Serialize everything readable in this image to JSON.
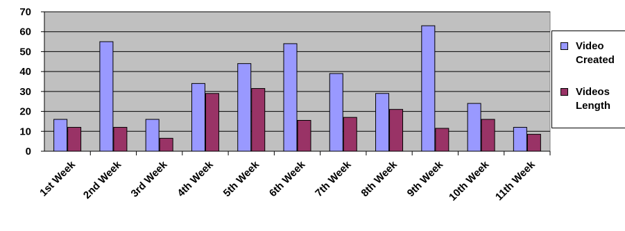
{
  "chart_data": {
    "type": "bar",
    "title": "",
    "xlabel": "",
    "ylabel": "",
    "ylim": [
      0,
      70
    ],
    "yticks": [
      0,
      10,
      20,
      30,
      40,
      50,
      60,
      70
    ],
    "grid": true,
    "legend_position": "right",
    "categories": [
      "1st Week",
      "2nd Week",
      "3rd Week",
      "4th Week",
      "5th Week",
      "6th Week",
      "7th Week",
      "8th Week",
      "9th Week",
      "10th Week",
      "11th Week"
    ],
    "series": [
      {
        "name": "Video Created",
        "color": "#9999ff",
        "values": [
          16,
          55,
          16,
          34,
          44,
          54,
          39,
          29,
          63,
          24,
          12
        ]
      },
      {
        "name": "Videos Length",
        "color": "#993366",
        "values": [
          12,
          12,
          6.5,
          29,
          31.5,
          15.5,
          17,
          21,
          11.5,
          16,
          8.5
        ]
      }
    ],
    "plot_background": "#c0c0c0"
  },
  "legend": {
    "items": [
      {
        "label": "Video Created",
        "color": "#9999ff"
      },
      {
        "label": "Videos Length",
        "color": "#993366"
      }
    ]
  }
}
